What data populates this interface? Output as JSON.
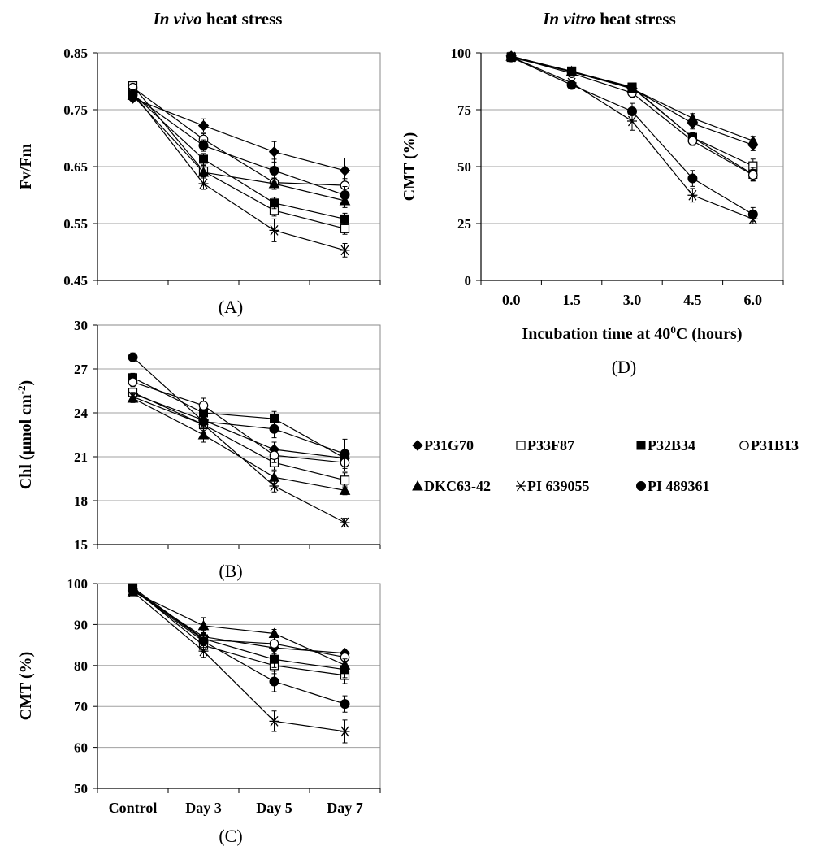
{
  "headings": {
    "invivo_emph": "In vivo",
    "invivo_rest": " heat stress",
    "invitro_emph": "In vitro",
    "invitro_rest": " heat stress"
  },
  "legend": [
    {
      "name": "P31G70",
      "marker": "diamond-filled"
    },
    {
      "name": "P33F87",
      "marker": "square-open"
    },
    {
      "name": "P32B34",
      "marker": "square-filled"
    },
    {
      "name": "P31B13",
      "marker": "circle-open"
    },
    {
      "name": "DKC63-42",
      "marker": "triangle-filled"
    },
    {
      "name": "PI 639055",
      "marker": "star"
    },
    {
      "name": "PI 489361",
      "marker": "circle-filled"
    }
  ],
  "chart_data": [
    {
      "id": "A",
      "type": "line",
      "panel_label": "(A)",
      "ylabel": "Fv/Fm",
      "xlabel": "",
      "ylim": [
        0.45,
        0.85
      ],
      "yticks": [
        "0.45",
        "0.55",
        "0.65",
        "0.75",
        "0.85"
      ],
      "categories": [
        "Control",
        "Day 3",
        "Day 5",
        "Day 7"
      ],
      "show_xticklabels": false,
      "series": [
        {
          "name": "P31G70",
          "values": [
            0.77,
            0.722,
            0.676,
            0.643
          ],
          "err": [
            0.005,
            0.012,
            0.018,
            0.022
          ]
        },
        {
          "name": "P33F87",
          "values": [
            0.792,
            0.642,
            0.573,
            0.541
          ],
          "err": [
            0.005,
            0.01,
            0.01,
            0.01
          ]
        },
        {
          "name": "P32B34",
          "values": [
            0.778,
            0.663,
            0.586,
            0.558
          ],
          "err": [
            0.005,
            0.01,
            0.01,
            0.01
          ]
        },
        {
          "name": "P31B13",
          "values": [
            0.789,
            0.698,
            0.622,
            0.617
          ],
          "err": [
            0.005,
            0.01,
            0.012,
            0.012
          ]
        },
        {
          "name": "DKC63-42",
          "values": [
            0.775,
            0.64,
            0.62,
            0.59
          ],
          "err": [
            0.005,
            0.01,
            0.01,
            0.012
          ]
        },
        {
          "name": "PI 639055",
          "values": [
            0.78,
            0.62,
            0.538,
            0.503
          ],
          "err": [
            0.005,
            0.01,
            0.02,
            0.012
          ]
        },
        {
          "name": "PI 489361",
          "values": [
            0.776,
            0.687,
            0.643,
            0.6
          ],
          "err": [
            0.005,
            0.01,
            0.02,
            0.015
          ]
        }
      ]
    },
    {
      "id": "B",
      "type": "line",
      "panel_label": "(B)",
      "ylabel": "Chl (μmol cm",
      "ylabel_sup": "-2",
      "ylabel_end": ")",
      "xlabel": "",
      "ylim": [
        15,
        30
      ],
      "yticks": [
        "15",
        "18",
        "21",
        "24",
        "27",
        "30"
      ],
      "categories": [
        "Control",
        "Day 3",
        "Day 5",
        "Day 7"
      ],
      "show_xticklabels": false,
      "series": [
        {
          "name": "P31G70",
          "values": [
            25.3,
            23.5,
            21.5,
            20.9
          ],
          "err": [
            0.3,
            0.4,
            0.5,
            0.5
          ]
        },
        {
          "name": "P33F87",
          "values": [
            25.4,
            23.2,
            20.6,
            19.4
          ],
          "err": [
            0.3,
            0.4,
            0.5,
            0.5
          ]
        },
        {
          "name": "P32B34",
          "values": [
            26.4,
            24.0,
            23.6,
            20.9
          ],
          "err": [
            0.3,
            0.4,
            0.5,
            0.5
          ]
        },
        {
          "name": "P31B13",
          "values": [
            26.1,
            24.5,
            21.1,
            20.6
          ],
          "err": [
            0.3,
            0.5,
            0.5,
            0.6
          ]
        },
        {
          "name": "DKC63-42",
          "values": [
            25.0,
            22.5,
            19.6,
            18.7
          ],
          "err": [
            0.3,
            0.5,
            0.4,
            0.3
          ]
        },
        {
          "name": "PI 639055",
          "values": [
            25.1,
            23.2,
            19.0,
            16.5
          ],
          "err": [
            0.3,
            0.5,
            0.4,
            0.3
          ]
        },
        {
          "name": "PI 489361",
          "values": [
            27.8,
            23.4,
            22.9,
            21.2
          ],
          "err": [
            0.3,
            0.5,
            0.6,
            1.0
          ]
        }
      ]
    },
    {
      "id": "C",
      "type": "line",
      "panel_label": "(C)",
      "ylabel": "CMT (%)",
      "xlabel": "",
      "ylim": [
        50,
        100
      ],
      "yticks": [
        "50",
        "60",
        "70",
        "80",
        "90",
        "100"
      ],
      "categories": [
        "Control",
        "Day 3",
        "Day 5",
        "Day 7"
      ],
      "show_xticklabels": true,
      "series": [
        {
          "name": "P31G70",
          "values": [
            98.3,
            87.0,
            84.3,
            83.0
          ],
          "err": [
            0.5,
            1.5,
            1.5,
            1.0
          ]
        },
        {
          "name": "P33F87",
          "values": [
            98.8,
            84.9,
            80.0,
            77.6
          ],
          "err": [
            0.5,
            1.5,
            2.0,
            2.0
          ]
        },
        {
          "name": "P32B34",
          "values": [
            99.0,
            86.5,
            81.5,
            79.0
          ],
          "err": [
            0.5,
            1.5,
            2.0,
            2.0
          ]
        },
        {
          "name": "P31B13",
          "values": [
            98.7,
            86.3,
            85.3,
            82.0
          ],
          "err": [
            0.5,
            1.5,
            1.5,
            1.5
          ]
        },
        {
          "name": "DKC63-42",
          "values": [
            98.0,
            89.7,
            87.8,
            80.1
          ],
          "err": [
            0.5,
            2.0,
            1.0,
            1.5
          ]
        },
        {
          "name": "PI 639055",
          "values": [
            98.0,
            83.5,
            66.4,
            63.9
          ],
          "err": [
            0.5,
            1.5,
            2.5,
            2.8
          ]
        },
        {
          "name": "PI 489361",
          "values": [
            98.5,
            85.9,
            76.1,
            70.6
          ],
          "err": [
            0.5,
            1.5,
            2.5,
            2.0
          ]
        }
      ]
    },
    {
      "id": "D",
      "type": "line",
      "panel_label": "(D)",
      "ylabel": "CMT (%)",
      "xlabel": "Incubation time at 40",
      "xlabel_sup": "0",
      "xlabel_end": "C (hours)",
      "ylim": [
        0,
        100
      ],
      "yticks": [
        "0",
        "25",
        "50",
        "75",
        "100"
      ],
      "categories": [
        "0.0",
        "1.5",
        "3.0",
        "4.5",
        "6.0"
      ],
      "show_xticklabels": true,
      "series": [
        {
          "name": "P31G70",
          "values": [
            98.6,
            91.6,
            84.4,
            69.0,
            59.5
          ],
          "err": [
            0.5,
            1.0,
            1.5,
            2.5,
            2.5
          ]
        },
        {
          "name": "P33F87",
          "values": [
            98.2,
            92.0,
            84.7,
            62.8,
            50.3
          ],
          "err": [
            0.5,
            1.0,
            1.5,
            2.0,
            3.0
          ]
        },
        {
          "name": "P32B34",
          "values": [
            98.0,
            91.8,
            85.0,
            62.8,
            46.6
          ],
          "err": [
            0.5,
            1.0,
            1.5,
            2.0,
            3.0
          ]
        },
        {
          "name": "P31B13",
          "values": [
            98.4,
            91.0,
            82.4,
            61.3,
            46.3
          ],
          "err": [
            0.5,
            1.0,
            2.0,
            2.0,
            2.5
          ]
        },
        {
          "name": "DKC63-42",
          "values": [
            98.5,
            91.9,
            84.2,
            71.3,
            61.3
          ],
          "err": [
            0.5,
            1.0,
            1.5,
            2.0,
            2.0
          ]
        },
        {
          "name": "PI 639055",
          "values": [
            98.2,
            86.8,
            70.0,
            37.4,
            27.0
          ],
          "err": [
            0.5,
            1.0,
            4.0,
            3.0,
            2.0
          ]
        },
        {
          "name": "PI 489361",
          "values": [
            98.0,
            85.9,
            74.3,
            44.8,
            29.0
          ],
          "err": [
            0.5,
            1.0,
            3.5,
            3.5,
            3.0
          ]
        }
      ]
    }
  ]
}
